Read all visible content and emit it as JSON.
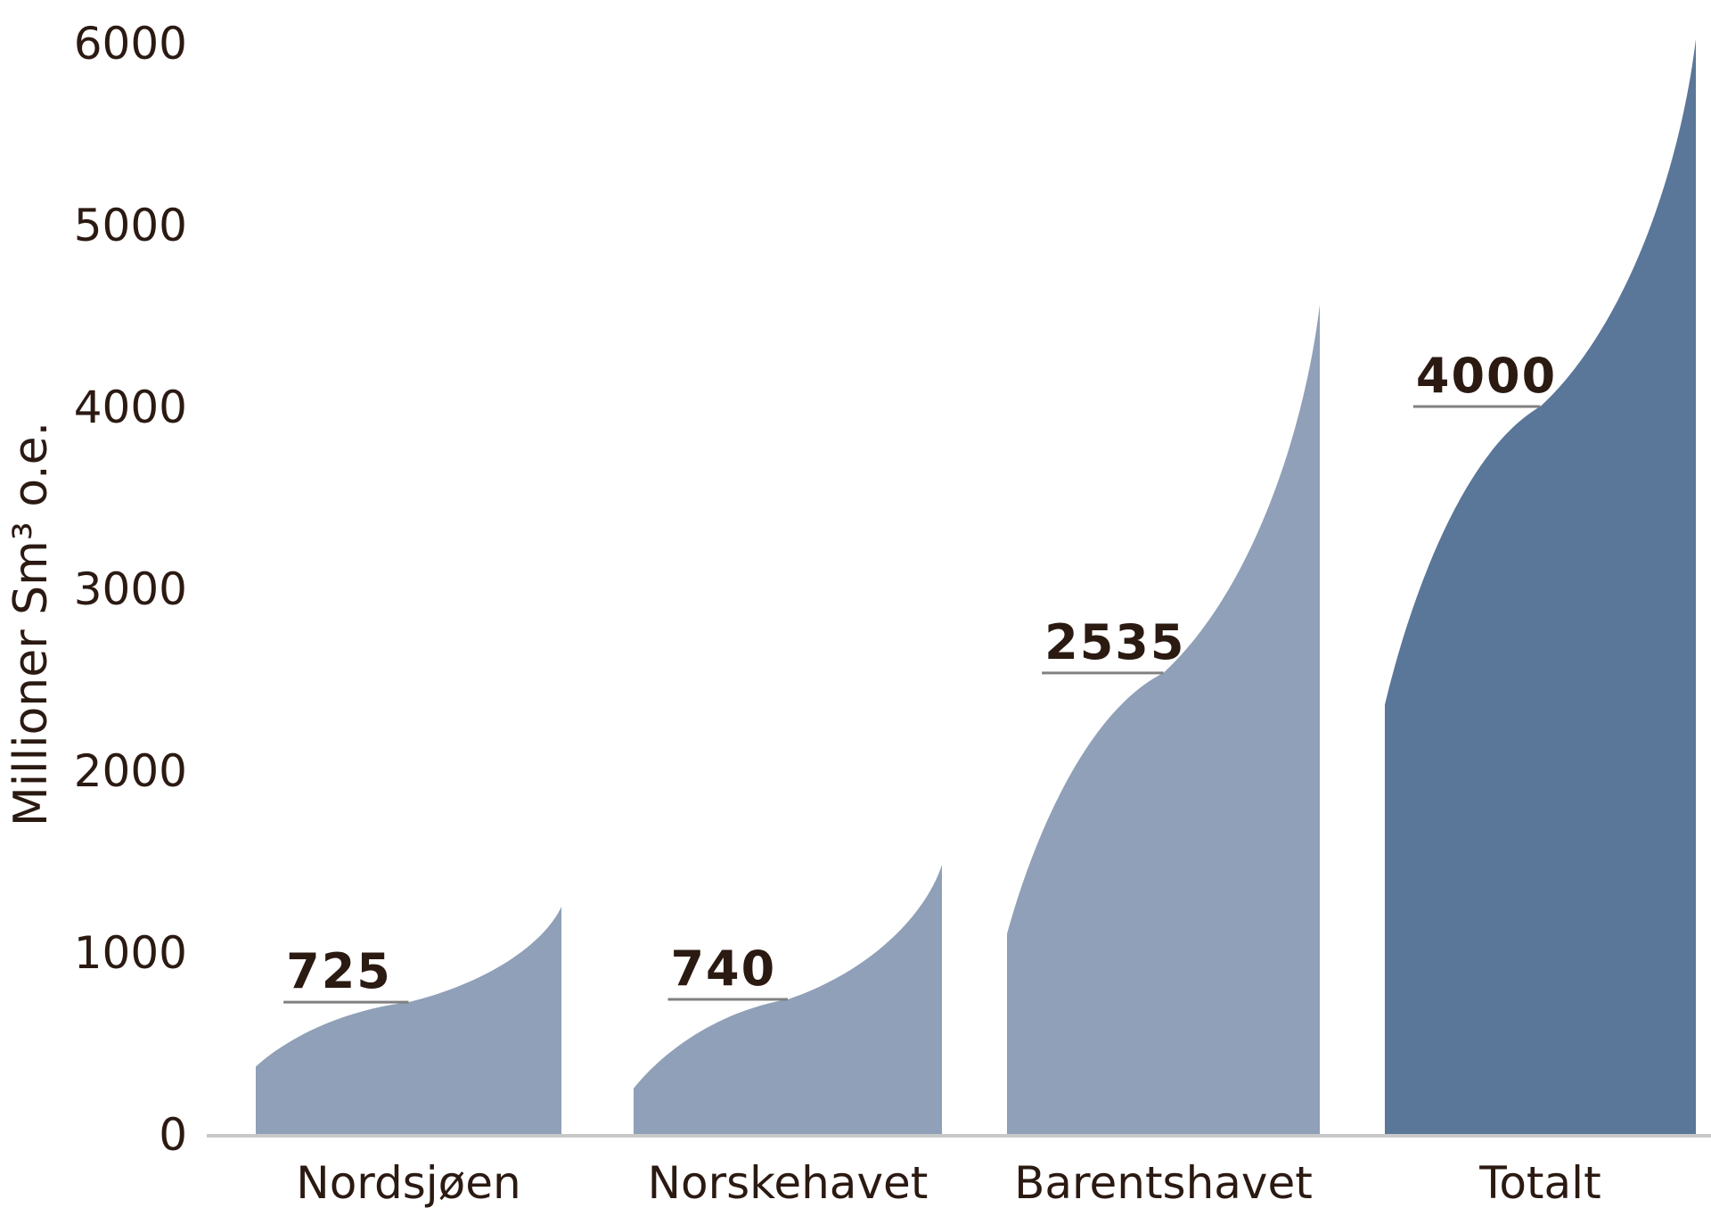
{
  "chart_data": {
    "type": "area",
    "title": "",
    "xlabel": "",
    "ylabel": "Millioner Sm³ o.e.",
    "ylim": [
      0,
      6000
    ],
    "yticks": [
      0,
      1000,
      2000,
      3000,
      4000,
      5000,
      6000
    ],
    "grid": false,
    "categories": [
      "Nordsjøen",
      "Norskehavet",
      "Barentshavet",
      "Totalt"
    ],
    "series": [
      {
        "category": "Nordsjøen",
        "low": 370,
        "expected": 725,
        "high": 1250,
        "expected_label": "725",
        "color": "#8fa0b8"
      },
      {
        "category": "Norskehavet",
        "low": 250,
        "expected": 740,
        "high": 1480,
        "expected_label": "740",
        "color": "#8fa0b8"
      },
      {
        "category": "Barentshavet",
        "low": 1100,
        "expected": 2535,
        "high": 4560,
        "expected_label": "2535",
        "color": "#8fa0b8"
      },
      {
        "category": "Totalt",
        "low": 2360,
        "expected": 4000,
        "high": 6020,
        "expected_label": "4000",
        "color": "#5a7698"
      }
    ]
  }
}
